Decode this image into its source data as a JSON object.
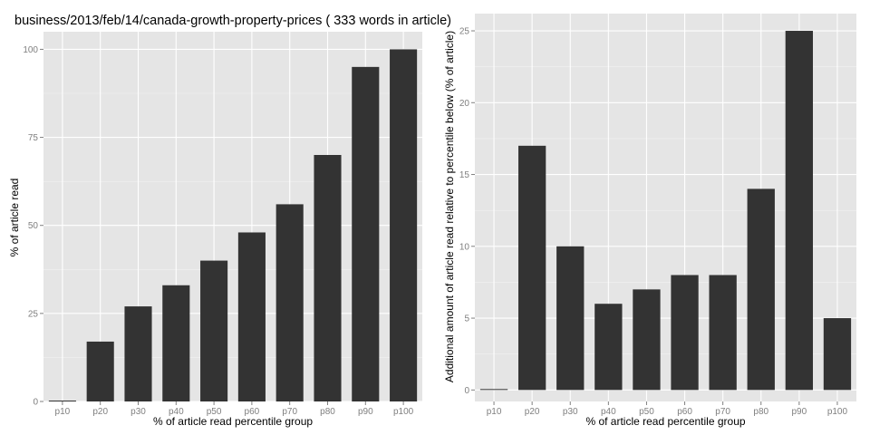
{
  "title": "business/2013/feb/14/canada-growth-property-prices ( 333 words in article)",
  "chart_data": [
    {
      "type": "bar",
      "categories": [
        "p10",
        "p20",
        "p30",
        "p40",
        "p50",
        "p60",
        "p70",
        "p80",
        "p90",
        "p100"
      ],
      "values": [
        0,
        17,
        27,
        33,
        40,
        48,
        56,
        70,
        95,
        100
      ],
      "xlabel": "% of article read percentile group",
      "ylabel": "% of article read",
      "ylim": [
        0,
        105
      ],
      "yticks": [
        0,
        25,
        50,
        75,
        100
      ],
      "grid": true,
      "colors": {
        "bar": "#333333",
        "panel": "#e5e5e5",
        "grid": "#ffffff"
      }
    },
    {
      "type": "bar",
      "categories": [
        "p10",
        "p20",
        "p30",
        "p40",
        "p50",
        "p60",
        "p70",
        "p80",
        "p90",
        "p100"
      ],
      "values": [
        0,
        17,
        10,
        6,
        7,
        8,
        8,
        14,
        25,
        5
      ],
      "xlabel": "% of article read percentile group",
      "ylabel": "Additional amount of article read relative to percentile below (% of article)",
      "ylim": [
        -0.8,
        26.2
      ],
      "yticks": [
        0,
        5,
        10,
        15,
        20,
        25
      ],
      "grid": true,
      "colors": {
        "bar": "#333333",
        "panel": "#e5e5e5",
        "grid": "#ffffff"
      }
    }
  ]
}
